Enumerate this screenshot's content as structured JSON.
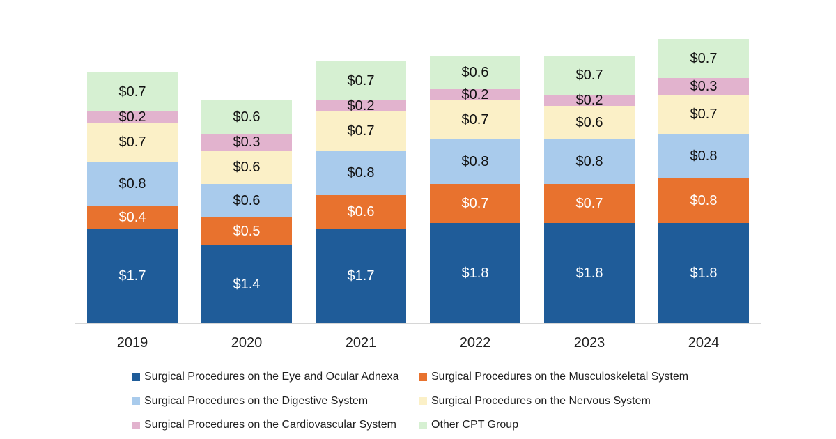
{
  "chart_data": {
    "type": "bar",
    "stacked": true,
    "categories": [
      "2019",
      "2020",
      "2021",
      "2022",
      "2023",
      "2024"
    ],
    "series": [
      {
        "name": "Surgical Procedures on the Eye and Ocular Adnexa",
        "color": "#1F5C99",
        "label_color": "#ffffff",
        "values": [
          1.7,
          1.4,
          1.7,
          1.8,
          1.8,
          1.8
        ],
        "labels": [
          "$1.7",
          "$1.4",
          "$1.7",
          "$1.8",
          "$1.8",
          "$1.8"
        ]
      },
      {
        "name": "Surgical Procedures on the Musculoskeletal System",
        "color": "#E8722E",
        "label_color": "#ffffff",
        "values": [
          0.4,
          0.5,
          0.6,
          0.7,
          0.7,
          0.8
        ],
        "labels": [
          "$0.4",
          "$0.5",
          "$0.6",
          "$0.7",
          "$0.7",
          "$0.8"
        ]
      },
      {
        "name": "Surgical Procedures on the Digestive System",
        "color": "#A9CBEC",
        "label_color": "#111111",
        "values": [
          0.8,
          0.6,
          0.8,
          0.8,
          0.8,
          0.8
        ],
        "labels": [
          "$0.8",
          "$0.6",
          "$0.8",
          "$0.8",
          "$0.8",
          "$0.8"
        ]
      },
      {
        "name": "Surgical Procedures on the Nervous System",
        "color": "#FBF0C7",
        "label_color": "#111111",
        "values": [
          0.7,
          0.6,
          0.7,
          0.7,
          0.6,
          0.7
        ],
        "labels": [
          "$0.7",
          "$0.6",
          "$0.7",
          "$0.7",
          "$0.6",
          "$0.7"
        ]
      },
      {
        "name": "Surgical Procedures on the Cardiovascular System",
        "color": "#E2B3CE",
        "label_color": "#111111",
        "values": [
          0.2,
          0.3,
          0.2,
          0.2,
          0.2,
          0.3
        ],
        "labels": [
          "$0.2",
          "$0.3",
          "$0.2",
          "$0.2",
          "$0.2",
          "$0.3"
        ]
      },
      {
        "name": "Other CPT Group",
        "color": "#D6F0D2",
        "label_color": "#111111",
        "values": [
          0.7,
          0.6,
          0.7,
          0.6,
          0.7,
          0.7
        ],
        "labels": [
          "$0.7",
          "$0.6",
          "$0.7",
          "$0.6",
          "$0.7",
          "$0.7"
        ]
      }
    ],
    "title": "",
    "xlabel": "",
    "ylabel": "",
    "ylim": [
      0,
      5.3
    ],
    "grid": false,
    "legend_position": "bottom"
  }
}
